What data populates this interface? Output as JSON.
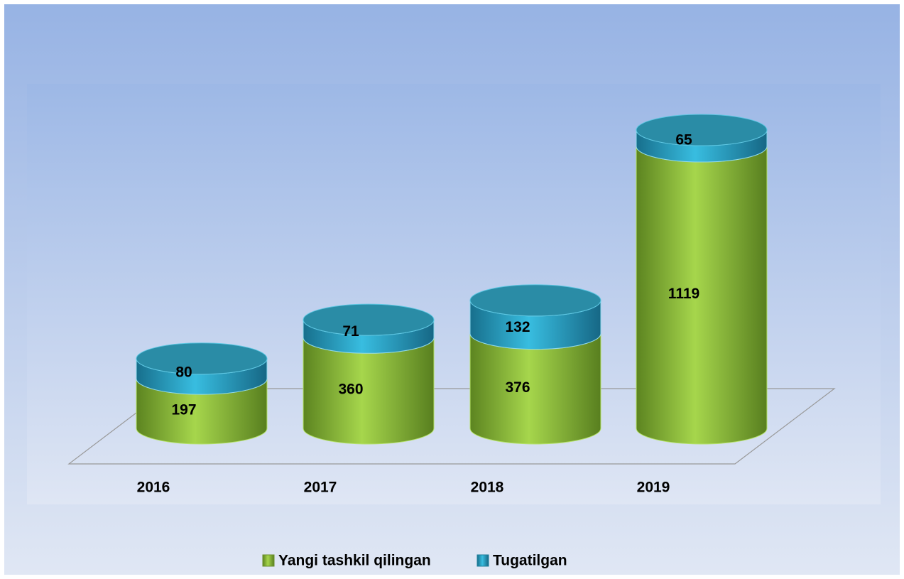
{
  "chart_data": {
    "type": "cylinder-stacked",
    "categories": [
      "2016",
      "2017",
      "2018",
      "2019"
    ],
    "series": [
      {
        "name": "Yangi tashkil qilingan",
        "color": "#8dbb3a",
        "values": [
          197,
          360,
          376,
          1119
        ]
      },
      {
        "name": "Tugatilgan",
        "color": "#2aa3c6",
        "values": [
          80,
          71,
          132,
          65
        ]
      }
    ],
    "legend": "bottom"
  }
}
